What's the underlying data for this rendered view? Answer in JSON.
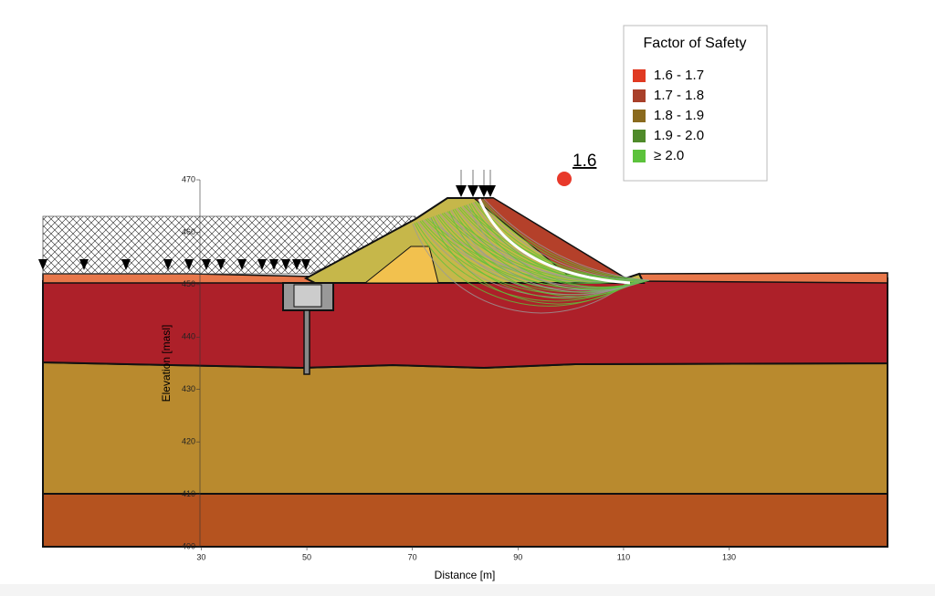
{
  "chart_data": {
    "type": "section",
    "xlabel": "Distance [m]",
    "ylabel": "Elevation [masl]",
    "xlim": [
      0,
      160
    ],
    "xticks": [
      30,
      50,
      70,
      90,
      110,
      130
    ],
    "ylim": [
      400,
      470
    ],
    "yticks": [
      400,
      410,
      420,
      430,
      440,
      450,
      460,
      470
    ],
    "min_factor_of_safety": 1.6,
    "min_color": "#e8392a",
    "legend": {
      "title": "Factor of Safety",
      "entries": [
        {
          "name": "1.6 - 1.7",
          "color": "#e03a22"
        },
        {
          "name": "1.7 - 1.8",
          "color": "#a8402a"
        },
        {
          "name": "1.8 - 1.9",
          "color": "#8a6a1e"
        },
        {
          "name": "1.9 - 2.0",
          "color": "#4f8a2a"
        },
        {
          "name": "≥ 2.0",
          "color": "#5cc23c"
        }
      ]
    }
  }
}
